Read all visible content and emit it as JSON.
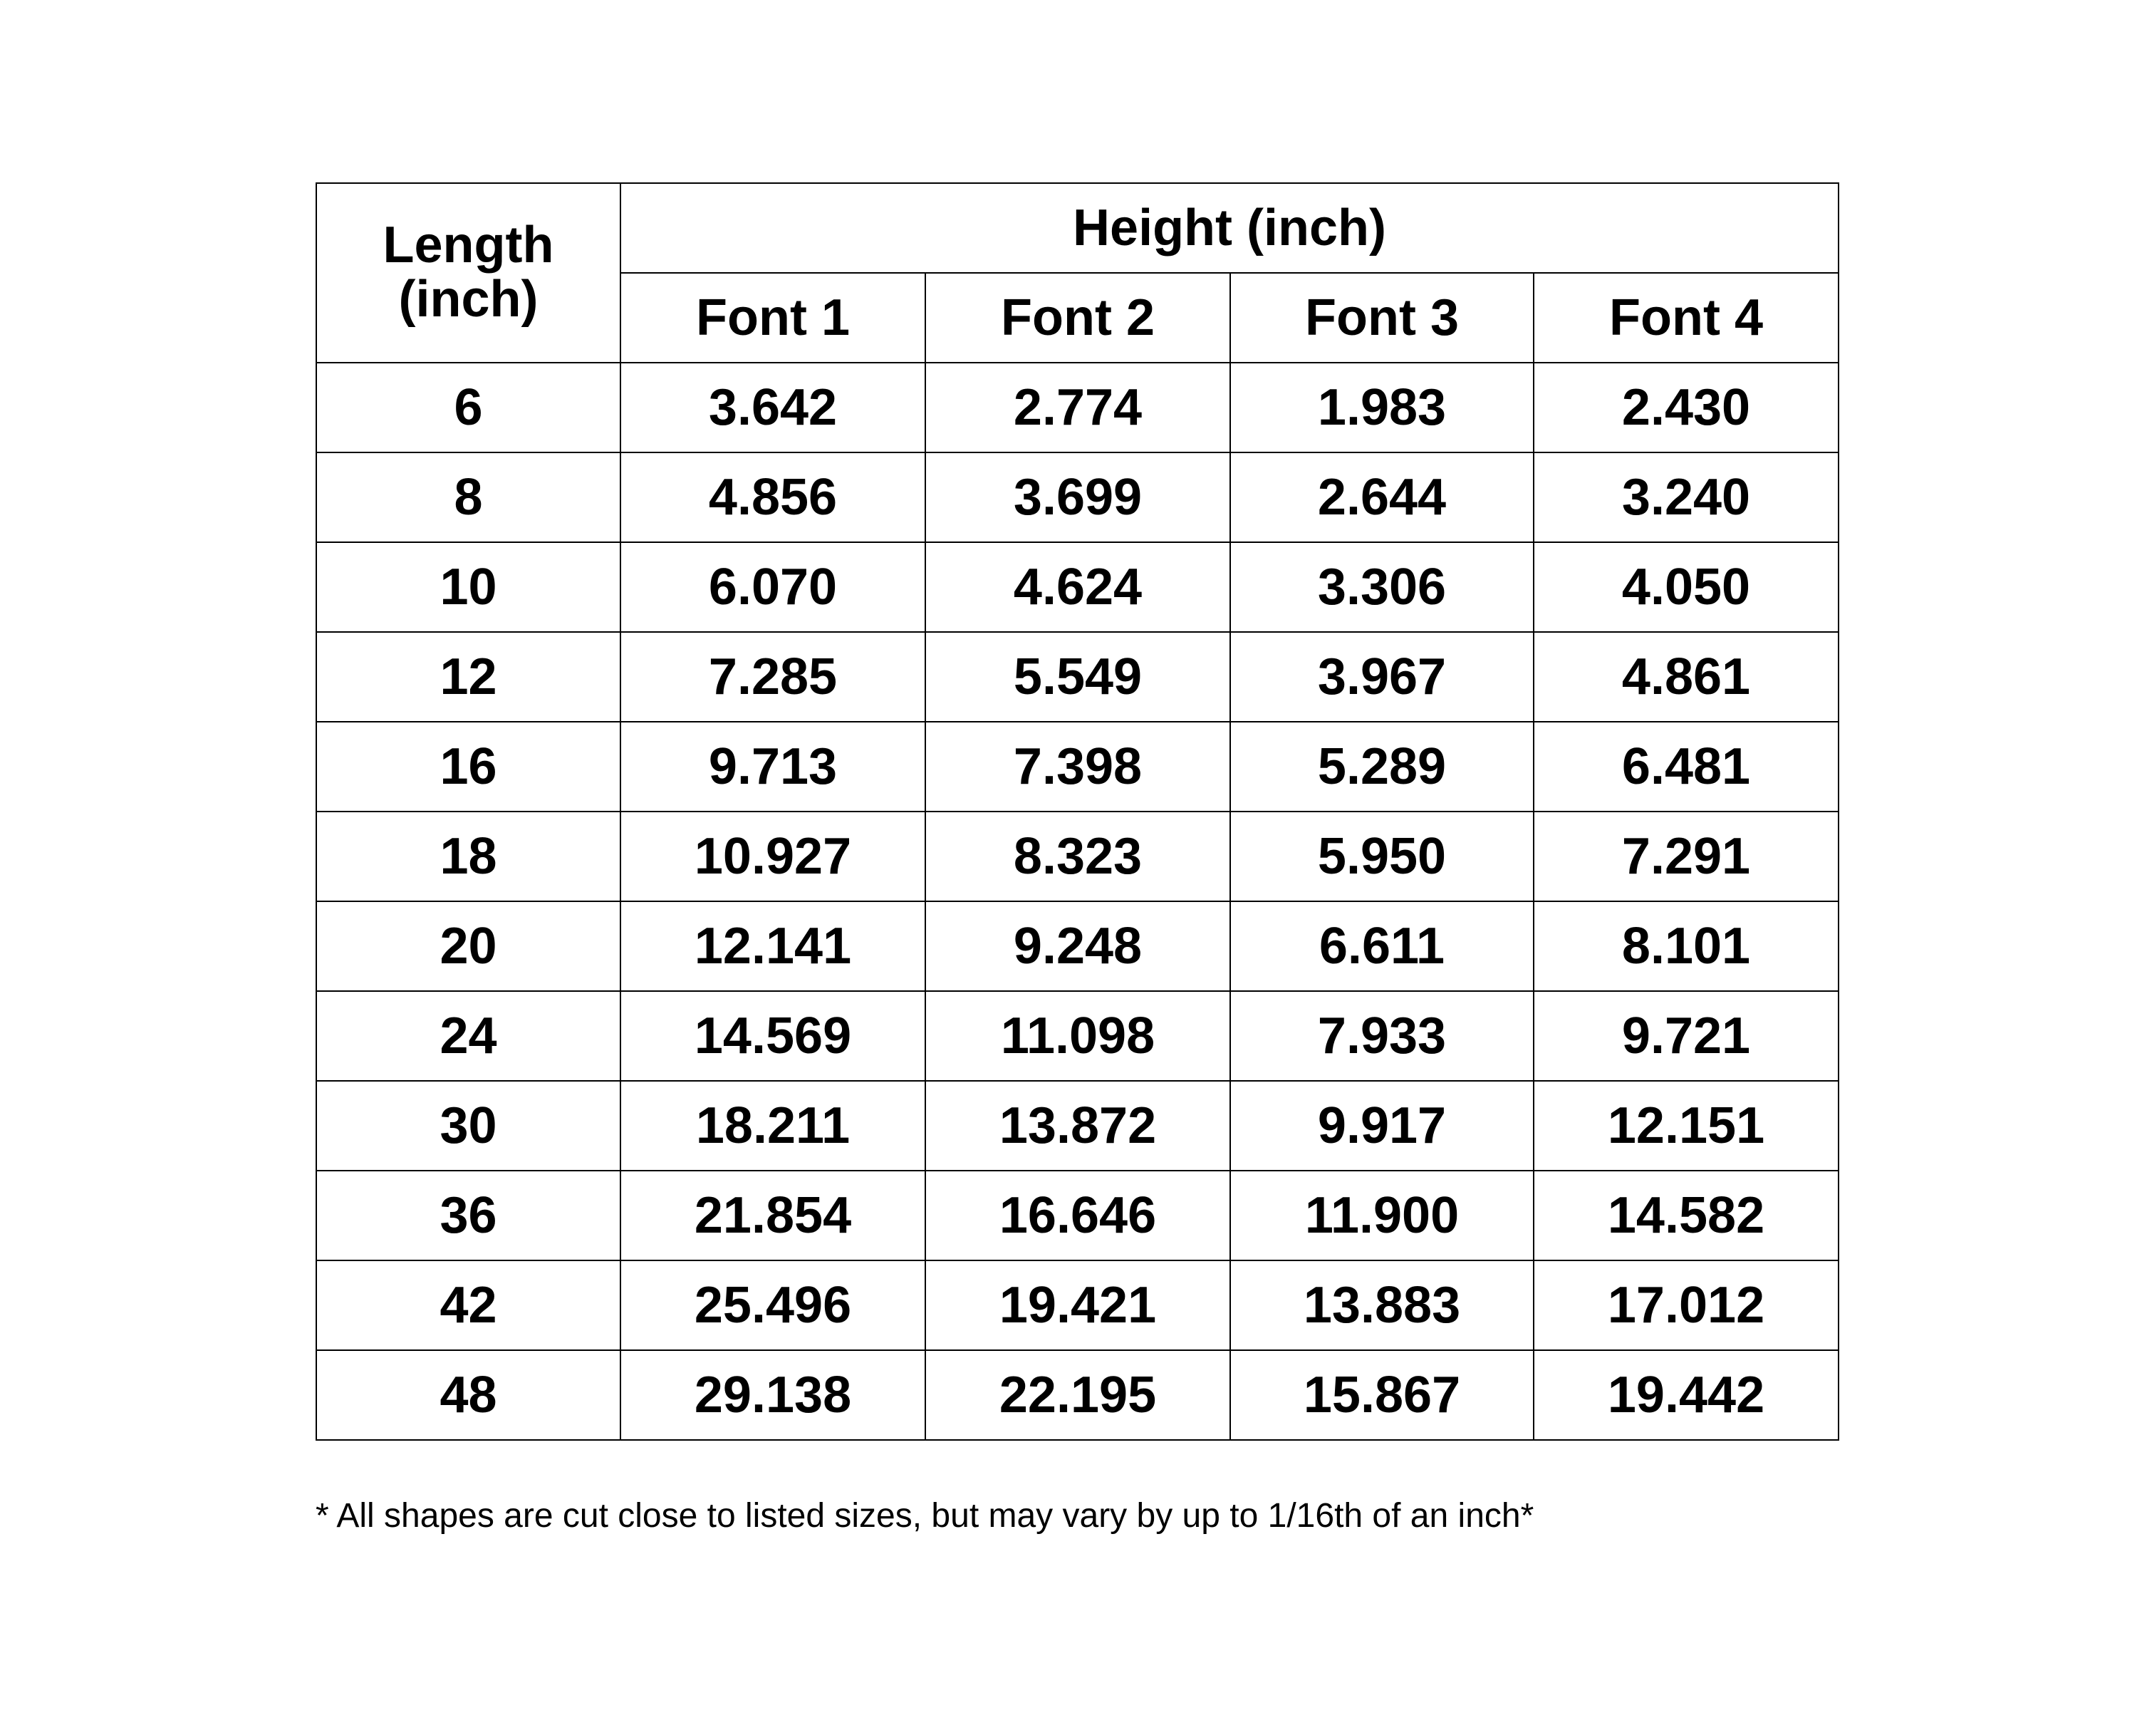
{
  "table": {
    "header": {
      "length": "Length (inch)",
      "height": "Height (inch)",
      "fonts": [
        "Font 1",
        "Font 2",
        "Font 3",
        "Font 4"
      ]
    },
    "rows": [
      [
        "6",
        "3.642",
        "2.774",
        "1.983",
        "2.430"
      ],
      [
        "8",
        "4.856",
        "3.699",
        "2.644",
        "3.240"
      ],
      [
        "10",
        "6.070",
        "4.624",
        "3.306",
        "4.050"
      ],
      [
        "12",
        "7.285",
        "5.549",
        "3.967",
        "4.861"
      ],
      [
        "16",
        "9.713",
        "7.398",
        "5.289",
        "6.481"
      ],
      [
        "18",
        "10.927",
        "8.323",
        "5.950",
        "7.291"
      ],
      [
        "20",
        "12.141",
        "9.248",
        "6.611",
        "8.101"
      ],
      [
        "24",
        "14.569",
        "11.098",
        "7.933",
        "9.721"
      ],
      [
        "30",
        "18.211",
        "13.872",
        "9.917",
        "12.151"
      ],
      [
        "36",
        "21.854",
        "16.646",
        "11.900",
        "14.582"
      ],
      [
        "42",
        "25.496",
        "19.421",
        "13.883",
        "17.012"
      ],
      [
        "48",
        "29.138",
        "22.195",
        "15.867",
        "19.442"
      ]
    ]
  },
  "footnote": "* All shapes are cut close to listed sizes, but may vary by up to 1/16th of an inch*"
}
